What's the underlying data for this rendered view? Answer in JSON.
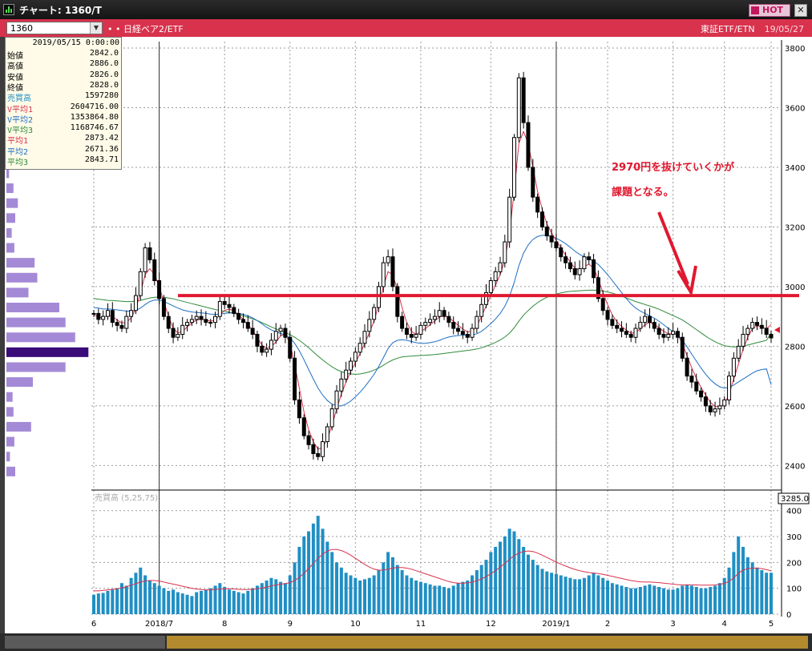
{
  "window": {
    "title": "チャート: 1360/T",
    "hot_label": "HOT",
    "close_glyph": "✕"
  },
  "toolbar": {
    "symbol": "1360",
    "marker": "• •",
    "name": "日経ベア2/ETF",
    "market": "東証ETF/ETN",
    "date": "19/05/27"
  },
  "info": {
    "date": "2019/05/15 0:00:00",
    "rows": [
      {
        "label": "始値",
        "value": "2842.0",
        "color": "#000000"
      },
      {
        "label": "高値",
        "value": "2886.0",
        "color": "#000000"
      },
      {
        "label": "安値",
        "value": "2826.0",
        "color": "#000000"
      },
      {
        "label": "終値",
        "value": "2828.0",
        "color": "#000000"
      },
      {
        "label": "売買高",
        "value": "1597280",
        "color": "#1f8fc4"
      },
      {
        "label": "V平均1",
        "value": "2604716.00",
        "color": "#d8324c"
      },
      {
        "label": "V平均2",
        "value": "1353864.80",
        "color": "#1e6fc4"
      },
      {
        "label": "V平均3",
        "value": "1168746.67",
        "color": "#2e8b3a"
      },
      {
        "label": "平均1",
        "value": "2873.42",
        "color": "#d8324c"
      },
      {
        "label": "平均2",
        "value": "2671.36",
        "color": "#1e6fc4"
      },
      {
        "label": "平均3",
        "value": "2843.71",
        "color": "#2e8b3a"
      }
    ]
  },
  "annotation": {
    "line1": "2970円を抜けていくかが",
    "line2": "課題となる。",
    "line_level": 2970,
    "color": "#e0182f"
  },
  "price_axis": {
    "ticks": [
      "3800",
      "3600",
      "3400",
      "3200",
      "3000",
      "2800",
      "2600",
      "2400"
    ]
  },
  "volume_axis": {
    "header": "3285.0",
    "ticks": [
      "400",
      "300",
      "200",
      "100",
      "0"
    ],
    "legend": "売買高 (5,25,75)"
  },
  "x_axis": {
    "labels": [
      "6",
      "2018/7",
      "8",
      "9",
      "10",
      "11",
      "12",
      "2019/1",
      "2",
      "3",
      "4",
      "5"
    ]
  },
  "colors": {
    "candle": "#000000",
    "ma_short": "#d8324c",
    "ma_mid": "#1e6fc4",
    "ma_long": "#2e8b3a",
    "volume_bar": "#1f8fc4",
    "profile_bar": "#a48ad6",
    "profile_current": "#3a0c7a",
    "line": "#e0182f"
  },
  "chart_data": {
    "type": "candlestick",
    "ylim": [
      2350,
      3800
    ],
    "volume_ylim": [
      0,
      430
    ],
    "volume_scale": "10k shares",
    "month_ticks": [
      "6",
      "2018/7",
      "8",
      "9",
      "10",
      "11",
      "12",
      "2019/1",
      "2",
      "3",
      "4",
      "5"
    ],
    "closes": [
      2910,
      2890,
      2900,
      2920,
      2880,
      2870,
      2860,
      2900,
      2920,
      2970,
      3050,
      3130,
      3090,
      3020,
      2960,
      2900,
      2860,
      2830,
      2840,
      2870,
      2880,
      2890,
      2900,
      2890,
      2880,
      2880,
      2900,
      2950,
      2940,
      2930,
      2910,
      2890,
      2880,
      2860,
      2840,
      2800,
      2780,
      2790,
      2820,
      2850,
      2860,
      2830,
      2760,
      2620,
      2560,
      2500,
      2470,
      2440,
      2430,
      2480,
      2530,
      2590,
      2650,
      2690,
      2720,
      2750,
      2780,
      2810,
      2850,
      2890,
      2930,
      3000,
      3080,
      3100,
      3000,
      2900,
      2860,
      2840,
      2830,
      2840,
      2870,
      2880,
      2890,
      2900,
      2920,
      2900,
      2880,
      2860,
      2850,
      2840,
      2830,
      2860,
      2900,
      2940,
      2980,
      3020,
      3050,
      3080,
      3150,
      3300,
      3500,
      3700,
      3550,
      3400,
      3300,
      3250,
      3200,
      3170,
      3150,
      3130,
      3100,
      3080,
      3060,
      3040,
      3060,
      3100,
      3090,
      3030,
      2960,
      2920,
      2890,
      2870,
      2860,
      2850,
      2840,
      2830,
      2860,
      2880,
      2900,
      2880,
      2860,
      2840,
      2830,
      2840,
      2850,
      2830,
      2760,
      2700,
      2680,
      2650,
      2630,
      2600,
      2580,
      2590,
      2600,
      2620,
      2700,
      2760,
      2800,
      2840,
      2860,
      2880,
      2870,
      2860,
      2840,
      2828
    ],
    "ma_short": [
      2905,
      2898,
      2895,
      2905,
      2900,
      2888,
      2878,
      2880,
      2895,
      2925,
      2980,
      3040,
      3060,
      3040,
      3000,
      2950,
      2900,
      2860,
      2845,
      2850,
      2865,
      2878,
      2888,
      2890,
      2888,
      2884,
      2888,
      2905,
      2920,
      2925,
      2918,
      2905,
      2890,
      2872,
      2854,
      2828,
      2804,
      2792,
      2798,
      2815,
      2835,
      2840,
      2810,
      2740,
      2660,
      2580,
      2520,
      2480,
      2455,
      2460,
      2490,
      2535,
      2590,
      2640,
      2680,
      2715,
      2745,
      2775,
      2810,
      2845,
      2885,
      2940,
      3000,
      3050,
      3040,
      2990,
      2930,
      2880,
      2850,
      2840,
      2848,
      2860,
      2872,
      2885,
      2898,
      2902,
      2896,
      2884,
      2870,
      2858,
      2848,
      2850,
      2868,
      2900,
      2935,
      2970,
      3005,
      3040,
      3090,
      3180,
      3320,
      3480,
      3520,
      3480,
      3400,
      3320,
      3260,
      3210,
      3180,
      3155,
      3130,
      3105,
      3082,
      3062,
      3055,
      3068,
      3075,
      3062,
      3025,
      2980,
      2940,
      2905,
      2882,
      2866,
      2854,
      2844,
      2846,
      2858,
      2872,
      2880,
      2874,
      2862,
      2850,
      2842,
      2842,
      2838,
      2810,
      2768,
      2728,
      2692,
      2662,
      2636,
      2612,
      2598,
      2598,
      2606,
      2640,
      2690,
      2740,
      2790,
      2830,
      2860,
      2868,
      2866,
      2858,
      2873
    ],
    "ma_mid": [
      2930,
      2928,
      2925,
      2925,
      2924,
      2922,
      2920,
      2918,
      2918,
      2920,
      2928,
      2940,
      2950,
      2955,
      2955,
      2950,
      2943,
      2935,
      2928,
      2922,
      2918,
      2915,
      2913,
      2912,
      2910,
      2908,
      2907,
      2908,
      2910,
      2912,
      2912,
      2910,
      2907,
      2902,
      2895,
      2886,
      2875,
      2864,
      2855,
      2848,
      2843,
      2838,
      2828,
      2810,
      2785,
      2755,
      2722,
      2690,
      2660,
      2636,
      2618,
      2606,
      2600,
      2600,
      2606,
      2616,
      2630,
      2646,
      2664,
      2684,
      2706,
      2732,
      2762,
      2792,
      2812,
      2820,
      2822,
      2820,
      2816,
      2812,
      2810,
      2810,
      2812,
      2815,
      2820,
      2826,
      2831,
      2834,
      2836,
      2837,
      2837,
      2838,
      2842,
      2850,
      2862,
      2876,
      2892,
      2910,
      2934,
      2968,
      3014,
      3070,
      3112,
      3140,
      3158,
      3168,
      3172,
      3172,
      3168,
      3162,
      3154,
      3144,
      3132,
      3119,
      3108,
      3100,
      3094,
      3086,
      3074,
      3058,
      3040,
      3020,
      3000,
      2980,
      2960,
      2942,
      2928,
      2918,
      2910,
      2902,
      2894,
      2884,
      2872,
      2860,
      2850,
      2838,
      2820,
      2798,
      2774,
      2750,
      2727,
      2706,
      2688,
      2674,
      2664,
      2660,
      2662,
      2670,
      2680,
      2690,
      2700,
      2710,
      2718,
      2722,
      2724,
      2671
    ],
    "ma_long": [
      2960,
      2958,
      2956,
      2954,
      2953,
      2952,
      2951,
      2950,
      2950,
      2951,
      2954,
      2958,
      2962,
      2964,
      2965,
      2964,
      2962,
      2959,
      2955,
      2951,
      2947,
      2943,
      2939,
      2935,
      2931,
      2927,
      2923,
      2920,
      2917,
      2914,
      2910,
      2906,
      2902,
      2897,
      2892,
      2886,
      2879,
      2872,
      2865,
      2858,
      2852,
      2846,
      2839,
      2830,
      2820,
      2808,
      2795,
      2781,
      2767,
      2754,
      2742,
      2731,
      2722,
      2715,
      2710,
      2707,
      2706,
      2707,
      2710,
      2714,
      2720,
      2727,
      2736,
      2746,
      2754,
      2760,
      2764,
      2766,
      2767,
      2768,
      2769,
      2770,
      2771,
      2772,
      2774,
      2776,
      2778,
      2780,
      2782,
      2784,
      2786,
      2788,
      2791,
      2795,
      2800,
      2806,
      2813,
      2821,
      2831,
      2844,
      2862,
      2884,
      2904,
      2920,
      2934,
      2946,
      2956,
      2964,
      2970,
      2975,
      2979,
      2982,
      2984,
      2985,
      2986,
      2987,
      2988,
      2988,
      2987,
      2985,
      2982,
      2978,
      2973,
      2968,
      2962,
      2956,
      2950,
      2945,
      2940,
      2935,
      2930,
      2924,
      2917,
      2910,
      2903,
      2896,
      2888,
      2878,
      2867,
      2856,
      2845,
      2834,
      2824,
      2815,
      2808,
      2802,
      2799,
      2798,
      2799,
      2801,
      2804,
      2808,
      2812,
      2816,
      2820,
      2844
    ],
    "volume": [
      75,
      80,
      82,
      90,
      95,
      100,
      120,
      110,
      140,
      160,
      180,
      150,
      130,
      120,
      110,
      100,
      90,
      95,
      85,
      80,
      75,
      70,
      85,
      90,
      95,
      100,
      110,
      120,
      105,
      95,
      90,
      85,
      80,
      90,
      100,
      110,
      120,
      130,
      140,
      135,
      125,
      120,
      150,
      200,
      260,
      300,
      320,
      350,
      380,
      330,
      280,
      240,
      200,
      180,
      160,
      150,
      140,
      130,
      135,
      140,
      150,
      170,
      200,
      240,
      220,
      190,
      170,
      150,
      140,
      130,
      125,
      120,
      115,
      110,
      110,
      105,
      100,
      110,
      120,
      125,
      130,
      150,
      170,
      190,
      210,
      240,
      260,
      280,
      300,
      330,
      320,
      290,
      260,
      230,
      210,
      190,
      175,
      165,
      160,
      155,
      150,
      145,
      140,
      135,
      135,
      140,
      150,
      160,
      150,
      140,
      130,
      120,
      115,
      110,
      105,
      100,
      100,
      105,
      110,
      115,
      110,
      105,
      100,
      95,
      95,
      100,
      110,
      115,
      110,
      105,
      100,
      100,
      105,
      110,
      120,
      140,
      180,
      240,
      300,
      260,
      220,
      200,
      180,
      170,
      160,
      160
    ],
    "volume_ma": [
      90,
      90,
      92,
      94,
      96,
      98,
      102,
      106,
      112,
      118,
      124,
      128,
      130,
      130,
      128,
      124,
      120,
      116,
      112,
      108,
      104,
      100,
      97,
      95,
      94,
      94,
      95,
      97,
      98,
      98,
      97,
      96,
      95,
      95,
      96,
      98,
      101,
      105,
      109,
      113,
      116,
      118,
      122,
      130,
      142,
      158,
      176,
      196,
      216,
      232,
      244,
      250,
      250,
      246,
      238,
      228,
      216,
      204,
      192,
      182,
      174,
      170,
      170,
      174,
      178,
      180,
      180,
      178,
      174,
      168,
      162,
      156,
      150,
      144,
      138,
      132,
      126,
      122,
      120,
      120,
      121,
      124,
      129,
      136,
      145,
      156,
      168,
      182,
      196,
      212,
      226,
      236,
      242,
      244,
      242,
      236,
      228,
      219,
      210,
      201,
      193,
      186,
      179,
      173,
      168,
      164,
      161,
      159,
      157,
      154,
      150,
      146,
      142,
      138,
      134,
      130,
      127,
      125,
      124,
      124,
      123,
      122,
      120,
      118,
      116,
      114,
      113,
      113,
      113,
      113,
      112,
      112,
      112,
      113,
      115,
      119,
      127,
      140,
      158,
      170,
      176,
      178,
      178,
      176,
      172,
      168
    ],
    "volume_profile": [
      {
        "price": 3380,
        "length": 0.03
      },
      {
        "price": 3330,
        "length": 0.08
      },
      {
        "price": 3280,
        "length": 0.13
      },
      {
        "price": 3230,
        "length": 0.1
      },
      {
        "price": 3180,
        "length": 0.06
      },
      {
        "price": 3130,
        "length": 0.09
      },
      {
        "price": 3080,
        "length": 0.32
      },
      {
        "price": 3030,
        "length": 0.35
      },
      {
        "price": 2980,
        "length": 0.25
      },
      {
        "price": 2930,
        "length": 0.6
      },
      {
        "price": 2880,
        "length": 0.67
      },
      {
        "price": 2830,
        "length": 0.78
      },
      {
        "price": 2780,
        "length": 0.93,
        "current": true
      },
      {
        "price": 2730,
        "length": 0.67
      },
      {
        "price": 2680,
        "length": 0.3
      },
      {
        "price": 2630,
        "length": 0.07
      },
      {
        "price": 2580,
        "length": 0.08
      },
      {
        "price": 2530,
        "length": 0.28
      },
      {
        "price": 2480,
        "length": 0.09
      },
      {
        "price": 2430,
        "length": 0.04
      },
      {
        "price": 2380,
        "length": 0.1
      }
    ]
  }
}
